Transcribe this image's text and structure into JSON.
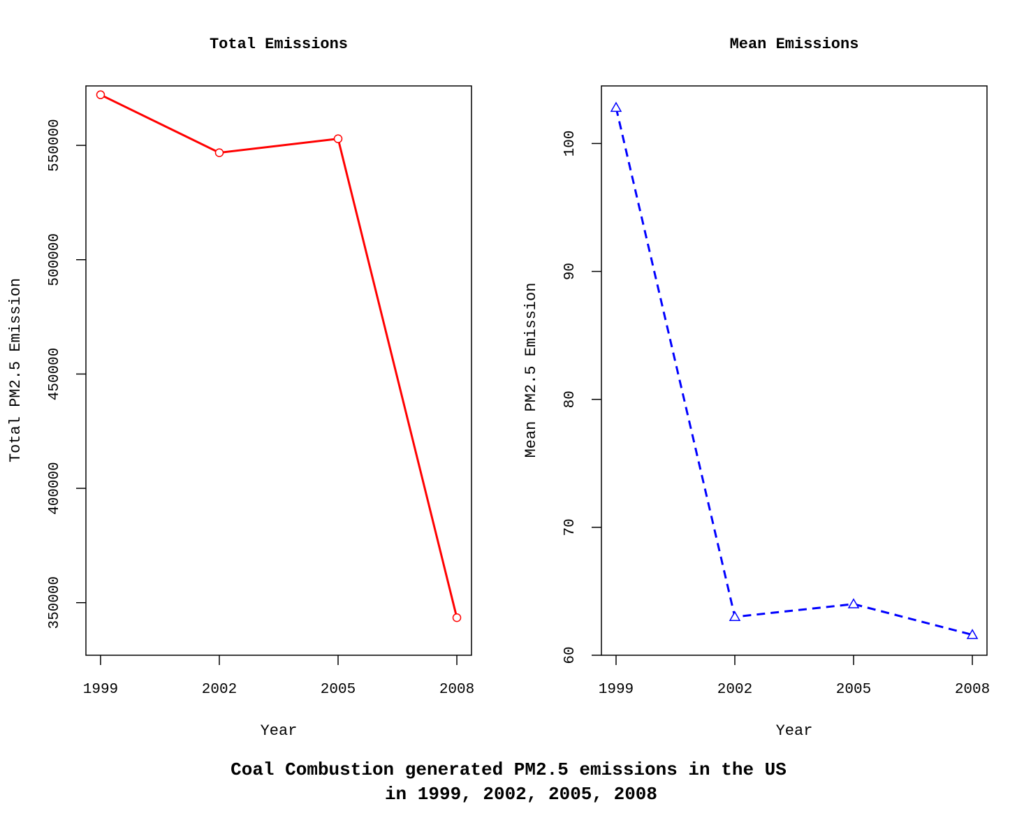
{
  "main_title": {
    "line1": "Coal Combustion generated PM2.5 emissions in the US",
    "line2": "in 1999, 2002, 2005, 2008"
  },
  "chart_data": [
    {
      "type": "line",
      "title": "Total Emissions",
      "xlabel": "Year",
      "ylabel": "Total PM2.5 Emission",
      "x": [
        1999,
        2002,
        2005,
        2008
      ],
      "values": [
        572126,
        546789,
        552881,
        343432
      ],
      "xlim": [
        1998.63,
        2008.37
      ],
      "ylim": [
        327000,
        576000
      ],
      "xticks": [
        "1999",
        "2002",
        "2005",
        "2008"
      ],
      "yticks": [
        "350000",
        "400000",
        "450000",
        "500000",
        "550000"
      ],
      "ytick_values": [
        350000,
        400000,
        450000,
        500000,
        550000
      ],
      "color": "#ff0000",
      "line_style": "solid",
      "marker": "circle",
      "grid": false
    },
    {
      "type": "line",
      "title": "Mean Emissions",
      "xlabel": "Year",
      "ylabel": "Mean PM2.5 Emission",
      "x": [
        1999,
        2002,
        2005,
        2008
      ],
      "values": [
        102.8,
        63.0,
        64.0,
        61.6
      ],
      "xlim": [
        1998.63,
        2008.37
      ],
      "ylim": [
        60,
        104.5
      ],
      "xticks": [
        "1999",
        "2002",
        "2005",
        "2008"
      ],
      "yticks": [
        "60",
        "70",
        "80",
        "90",
        "100"
      ],
      "ytick_values": [
        60,
        70,
        80,
        90,
        100
      ],
      "color": "#0000ff",
      "line_style": "dashed",
      "marker": "triangle",
      "grid": false
    }
  ]
}
